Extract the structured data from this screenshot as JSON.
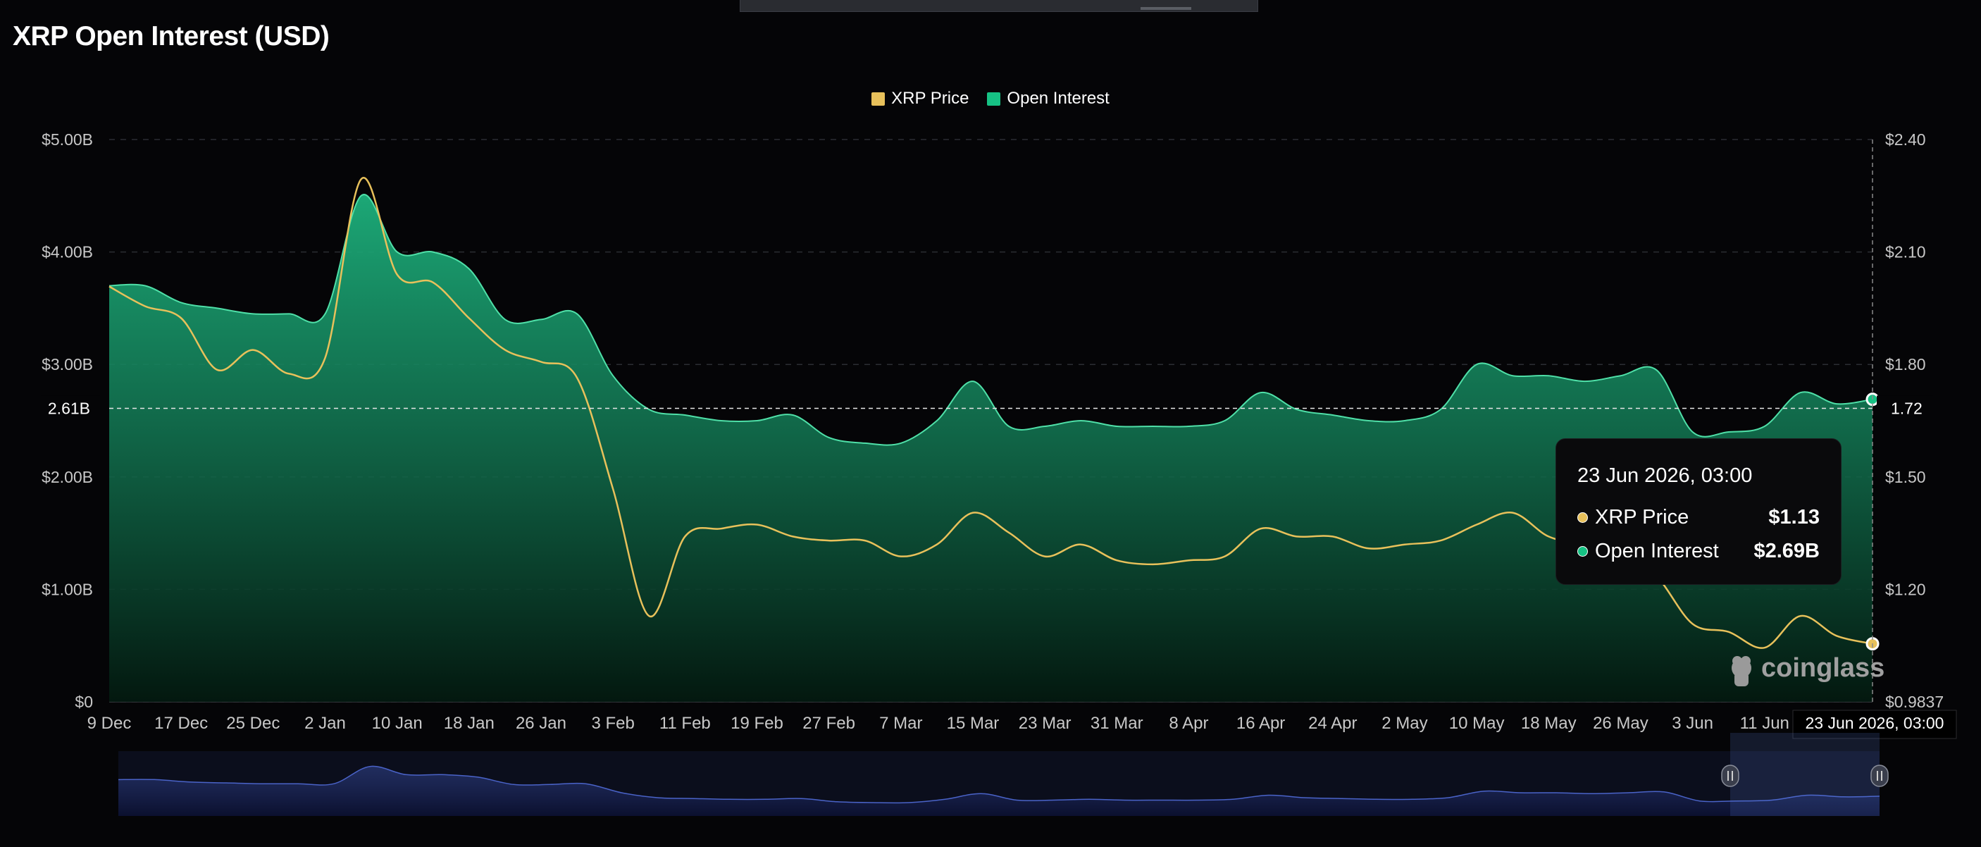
{
  "title": "XRP Open Interest (USD)",
  "legend": {
    "price_label": "XRP Price",
    "oi_label": "Open Interest",
    "price_color": "#e8c15b",
    "oi_color": "#16c284"
  },
  "tooltip": {
    "date": "23 Jun 2026, 03:00",
    "price_label": "XRP Price",
    "price_value": "$1.13",
    "oi_label": "Open Interest",
    "oi_value": "$2.69B"
  },
  "crosshair": {
    "left_value": "2.61B",
    "right_value": "1.72",
    "x_label": "23 Jun 2026, 03:00"
  },
  "watermark": "coinglass",
  "chart_data": {
    "type": "area",
    "x": [
      "9 Dec",
      "13 Dec",
      "17 Dec",
      "21 Dec",
      "25 Dec",
      "29 Dec",
      "2 Jan",
      "6 Jan",
      "10 Jan",
      "14 Jan",
      "18 Jan",
      "22 Jan",
      "26 Jan",
      "30 Jan",
      "3 Feb",
      "7 Feb",
      "11 Feb",
      "15 Feb",
      "19 Feb",
      "23 Feb",
      "27 Feb",
      "3 Mar",
      "7 Mar",
      "11 Mar",
      "15 Mar",
      "19 Mar",
      "23 Mar",
      "27 Mar",
      "31 Mar",
      "4 Apr",
      "8 Apr",
      "12 Apr",
      "16 Apr",
      "20 Apr",
      "24 Apr",
      "28 Apr",
      "2 May",
      "6 May",
      "10 May",
      "14 May",
      "18 May",
      "22 May",
      "26 May",
      "30 May",
      "3 Jun",
      "7 Jun",
      "11 Jun",
      "15 Jun",
      "19 Jun",
      "23 Jun"
    ],
    "x_ticks": [
      "9 Dec",
      "17 Dec",
      "25 Dec",
      "2 Jan",
      "10 Jan",
      "18 Jan",
      "26 Jan",
      "3 Feb",
      "11 Feb",
      "19 Feb",
      "27 Feb",
      "7 Mar",
      "15 Mar",
      "23 Mar",
      "31 Mar",
      "8 Apr",
      "16 Apr",
      "24 Apr",
      "2 May",
      "10 May",
      "18 May",
      "26 May",
      "3 Jun",
      "11 Jun"
    ],
    "series": [
      {
        "name": "Open Interest",
        "axis": "left",
        "unit": "USD billions",
        "values": [
          3.7,
          3.7,
          3.55,
          3.5,
          3.45,
          3.45,
          3.45,
          4.5,
          4.0,
          4.0,
          3.85,
          3.4,
          3.4,
          3.45,
          2.9,
          2.6,
          2.55,
          2.5,
          2.5,
          2.55,
          2.35,
          2.3,
          2.3,
          2.5,
          2.85,
          2.45,
          2.45,
          2.5,
          2.45,
          2.45,
          2.45,
          2.5,
          2.75,
          2.6,
          2.55,
          2.5,
          2.5,
          2.6,
          3.0,
          2.9,
          2.9,
          2.85,
          2.9,
          2.95,
          2.4,
          2.4,
          2.45,
          2.75,
          2.65,
          2.69
        ]
      },
      {
        "name": "XRP Price",
        "axis": "right",
        "unit": "USD",
        "values": [
          2.03,
          1.98,
          1.95,
          1.82,
          1.87,
          1.81,
          1.85,
          2.3,
          2.06,
          2.04,
          1.95,
          1.87,
          1.84,
          1.8,
          1.52,
          1.2,
          1.4,
          1.42,
          1.43,
          1.4,
          1.39,
          1.39,
          1.35,
          1.38,
          1.46,
          1.41,
          1.35,
          1.38,
          1.34,
          1.33,
          1.34,
          1.35,
          1.42,
          1.4,
          1.4,
          1.37,
          1.38,
          1.39,
          1.43,
          1.46,
          1.4,
          1.38,
          1.36,
          1.3,
          1.18,
          1.16,
          1.12,
          1.2,
          1.15,
          1.13
        ]
      }
    ],
    "y_left": {
      "ticks": [
        "$0",
        "$1.00B",
        "$2.00B",
        "$3.00B",
        "$4.00B",
        "$5.00B"
      ],
      "range": [
        0,
        5
      ]
    },
    "y_right": {
      "ticks": [
        "$0.9837",
        "$1.20",
        "$1.50",
        "$1.80",
        "$2.10",
        "$2.40"
      ],
      "range": [
        0.9837,
        2.4
      ]
    },
    "grid": true,
    "legend_position": "top-center"
  }
}
